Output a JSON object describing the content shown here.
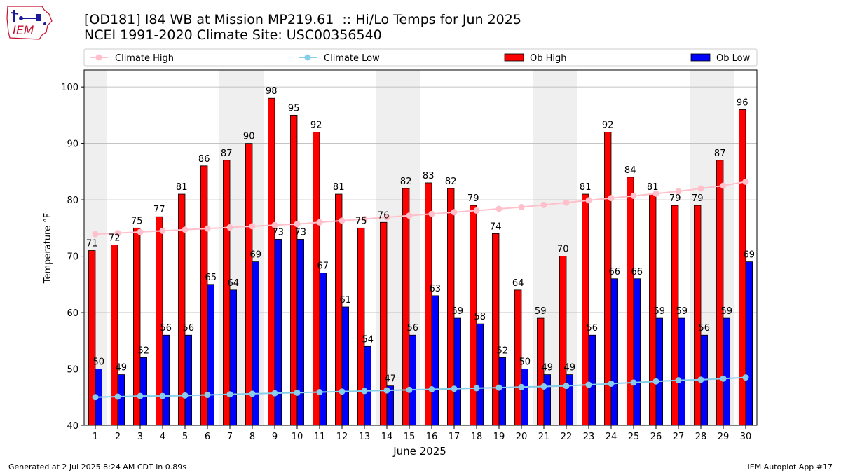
{
  "header": {
    "title_line1": "[OD181] I84 WB at Mission MP219.61  :: Hi/Lo Temps for Jun 2025",
    "title_line2": "NCEI 1991-2020 Climate Site: USC00356540"
  },
  "logo": {
    "text": "IEM"
  },
  "footer": {
    "generated": "Generated at 2 Jul 2025 8:24 AM CDT in 0.89s",
    "app": "IEM Autoplot App #17"
  },
  "colors": {
    "ob_high": "#ff0000",
    "ob_low": "#0000ff",
    "climate_high": "#ffc0cb",
    "climate_low": "#87ceeb",
    "weekend_shade": "#efefef"
  },
  "chart_data": {
    "type": "bar",
    "xlabel": "June 2025",
    "ylabel": "Temperature °F",
    "ylim": [
      40,
      103
    ],
    "yticks": [
      40,
      50,
      60,
      70,
      80,
      90,
      100
    ],
    "grid": true,
    "legend_position": "top",
    "categories": [
      "1",
      "2",
      "3",
      "4",
      "5",
      "6",
      "7",
      "8",
      "9",
      "10",
      "11",
      "12",
      "13",
      "14",
      "15",
      "16",
      "17",
      "18",
      "19",
      "20",
      "21",
      "22",
      "23",
      "24",
      "25",
      "26",
      "27",
      "28",
      "29",
      "30"
    ],
    "shaded_days": [
      1,
      7,
      8,
      14,
      15,
      21,
      22,
      28,
      29
    ],
    "series": [
      {
        "name": "Climate High",
        "kind": "line",
        "values": [
          73.9,
          74.1,
          74.3,
          74.5,
          74.7,
          74.9,
          75.1,
          75.3,
          75.5,
          75.7,
          76.0,
          76.3,
          76.6,
          76.9,
          77.2,
          77.5,
          77.8,
          78.1,
          78.4,
          78.7,
          79.1,
          79.5,
          79.9,
          80.3,
          80.7,
          81.1,
          81.5,
          82.0,
          82.5,
          83.2
        ]
      },
      {
        "name": "Climate Low",
        "kind": "line",
        "values": [
          45.0,
          45.1,
          45.2,
          45.2,
          45.3,
          45.4,
          45.5,
          45.6,
          45.7,
          45.8,
          45.9,
          46.0,
          46.1,
          46.2,
          46.3,
          46.4,
          46.5,
          46.6,
          46.7,
          46.8,
          46.9,
          47.0,
          47.2,
          47.4,
          47.6,
          47.8,
          48.0,
          48.1,
          48.3,
          48.5
        ]
      },
      {
        "name": "Ob High",
        "kind": "bar",
        "values": [
          71,
          72,
          75,
          77,
          81,
          86,
          87,
          90,
          98,
          95,
          92,
          81,
          75,
          76,
          82,
          83,
          82,
          79,
          74,
          64,
          59,
          70,
          81,
          92,
          84,
          81,
          79,
          79,
          87,
          96
        ]
      },
      {
        "name": "Ob Low",
        "kind": "bar",
        "values": [
          50,
          49,
          52,
          56,
          56,
          65,
          64,
          69,
          73,
          73,
          67,
          61,
          54,
          47,
          56,
          63,
          59,
          58,
          52,
          50,
          49,
          49,
          56,
          66,
          66,
          59,
          59,
          56,
          59,
          69
        ]
      }
    ]
  }
}
